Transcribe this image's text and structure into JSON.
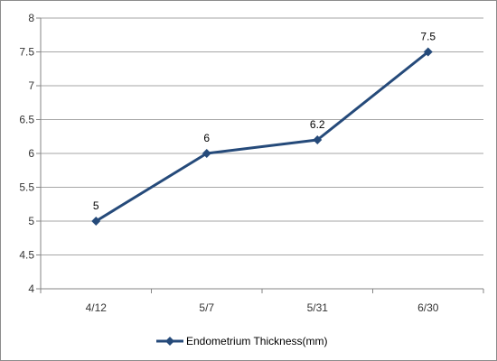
{
  "chart_data": {
    "type": "line",
    "categories": [
      "4/12",
      "5/7",
      "5/31",
      "6/30"
    ],
    "series": [
      {
        "name": "Endometrium Thickness(mm)",
        "values": [
          5,
          6,
          6.2,
          7.5
        ],
        "color": "#254a7a"
      }
    ],
    "data_labels": [
      "5",
      "6",
      "6.2",
      "7.5"
    ],
    "ylim": [
      4,
      8
    ],
    "yticks": [
      "4",
      "4.5",
      "5",
      "5.5",
      "6",
      "6.5",
      "7",
      "7.5",
      "8"
    ],
    "grid": "horizontal",
    "legend_position": "bottom",
    "title": "",
    "xlabel": "",
    "ylabel": ""
  }
}
